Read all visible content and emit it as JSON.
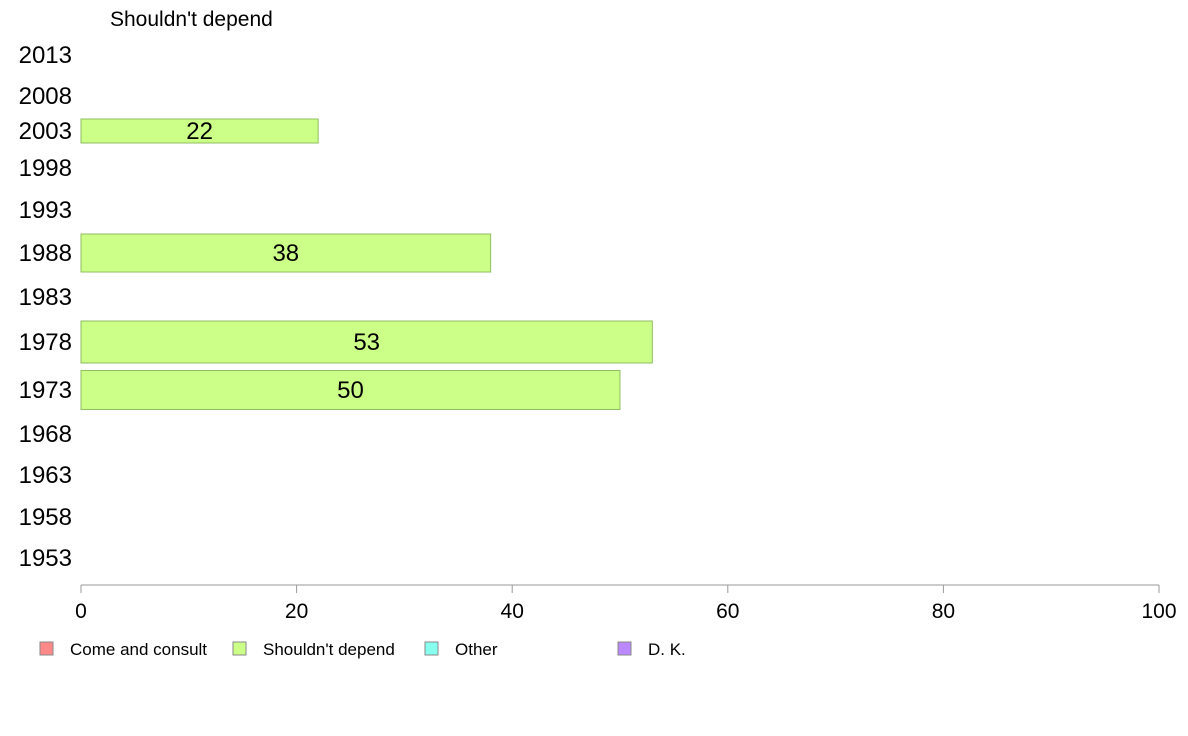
{
  "chart_data": {
    "type": "bar",
    "orientation": "horizontal",
    "title": "Shouldn't depend",
    "categories": [
      "2013",
      "2008",
      "2003",
      "1998",
      "1993",
      "1988",
      "1983",
      "1978",
      "1973",
      "1968",
      "1963",
      "1958",
      "1953"
    ],
    "series": [
      {
        "name": "Shouldn't depend",
        "color": "#ccff88",
        "values": [
          null,
          null,
          22,
          null,
          null,
          38,
          null,
          53,
          50,
          null,
          null,
          null,
          null
        ]
      }
    ],
    "xlim": [
      0,
      100
    ],
    "xticks": [
      0,
      20,
      40,
      60,
      80,
      100
    ],
    "grid": false,
    "legend_position": "bottom",
    "legend": [
      {
        "label": "Come and consult",
        "color": "#ff8888"
      },
      {
        "label": "Shouldn't depend",
        "color": "#ccff88"
      },
      {
        "label": "Other",
        "color": "#88ffee"
      },
      {
        "label": "D. K.",
        "color": "#bb88ff"
      }
    ]
  }
}
